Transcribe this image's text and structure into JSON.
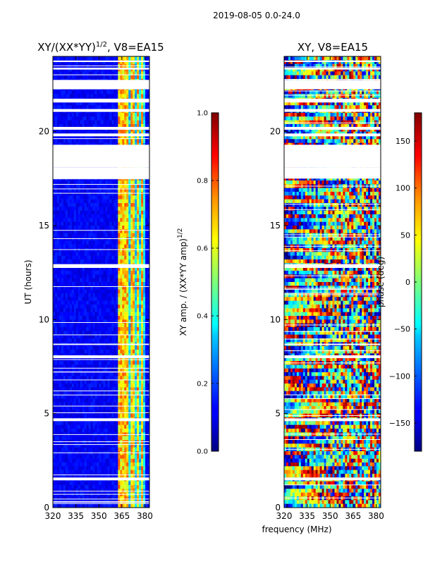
{
  "suptitle": "2019-08-05 0.0-24.0",
  "common_xlabel": "frequency (MHz)",
  "chart_data": [
    {
      "type": "heatmap",
      "title_main": "XY/(XX*YY)",
      "title_sup": "1/2",
      "title_rest": ", V8=EA15",
      "ylabel": "UT (hours)",
      "xlim": [
        320,
        383
      ],
      "ylim": [
        0,
        24
      ],
      "xticks": [
        320,
        335,
        350,
        365,
        380
      ],
      "yticks": [
        0,
        5,
        10,
        15,
        20
      ],
      "colorbar": {
        "label_main": "XY amp. / (XX*YY amp)",
        "label_sup": "1/2",
        "range": [
          0.0,
          1.0
        ],
        "ticks": [
          "0.0",
          "0.2",
          "0.4",
          "0.6",
          "0.8",
          "1.0"
        ],
        "colormap": "jet"
      },
      "description": "Normalized XY amplitude: mostly low (~0.1) below 360 MHz, bright striped features (0.4-0.8) between 363-378 MHz"
    },
    {
      "type": "heatmap",
      "title": "XY, V8=EA15",
      "ylabel": "",
      "xlim": [
        320,
        383
      ],
      "ylim": [
        0,
        24
      ],
      "xticks": [
        320,
        335,
        350,
        365,
        380
      ],
      "yticks": [
        0,
        5,
        10,
        15,
        20
      ],
      "colorbar": {
        "label": "phase (deg)",
        "range": [
          -180,
          180
        ],
        "ticks": [
          "150",
          "100",
          "50",
          "0",
          "−50",
          "−100",
          "−150"
        ],
        "colormap": "jet"
      },
      "description": "XY phase, noisy full-range values across all frequencies"
    }
  ],
  "flagged_gaps_ut": [
    [
      1.45,
      1.6
    ],
    [
      4.6,
      4.75
    ],
    [
      7.95,
      8.1
    ],
    [
      8.65,
      8.72
    ],
    [
      12.75,
      12.95
    ],
    [
      17.5,
      18.1
    ],
    [
      18.1,
      19.3
    ],
    [
      19.75,
      19.9
    ],
    [
      20.1,
      20.25
    ],
    [
      21.05,
      21.2
    ],
    [
      21.55,
      21.75
    ],
    [
      22.25,
      22.75
    ],
    [
      23.3,
      23.4
    ],
    [
      23.7,
      23.78
    ]
  ],
  "bright_channels_mhz": [
    364,
    366.5,
    369,
    372,
    375.5,
    378
  ]
}
